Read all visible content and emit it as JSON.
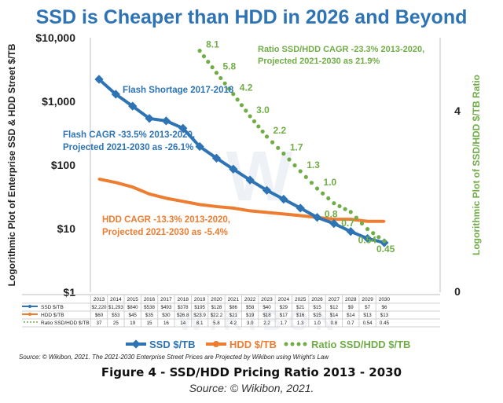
{
  "title": "SSD is Cheaper than HDD in 2026 and Beyond",
  "caption": "Figure 4 - SSD/HDD Pricing Ratio 2013 - 2030",
  "source_line": "Source: © Wikibon, 2021.",
  "source_note": "Source: © Wikibon, 2021. The 2021-2030 Enterprise Street Prices are Projected by Wikibon using Wright's Law",
  "watermark": "WIKIBON",
  "colors": {
    "ssd": "#2e74b5",
    "hdd": "#ed7d31",
    "ratio": "#70ad47",
    "title": "#2e74b5"
  },
  "chart_data": {
    "type": "line",
    "title": "SSD is Cheaper than HDD in 2026 and Beyond",
    "ylabel": "Logorithmic Plot of Enterprise SSD & HDD Street $/TB",
    "y2label": "Logorithmic Plot of SSD/HDD $/TB Ratio",
    "yscale": "log",
    "ylim": [
      1,
      10000
    ],
    "y_ticks": [
      "$1",
      "$10",
      "$100",
      "$1,000",
      "$10,000"
    ],
    "y2_ticks": [
      "0",
      "4"
    ],
    "categories": [
      "2013",
      "2014",
      "2015",
      "2016",
      "2017",
      "2018",
      "2019",
      "2020",
      "2021",
      "2022",
      "2023",
      "2024",
      "2025",
      "2026",
      "2027",
      "2028",
      "2029",
      "2030"
    ],
    "series": [
      {
        "name": "SSD $/TB",
        "values": [
          2220,
          1293,
          840,
          538,
          493,
          378,
          195,
          128,
          86,
          58,
          40,
          29,
          21,
          15,
          12,
          9,
          7,
          6
        ],
        "labels": [
          "$2,220",
          "$1,293",
          "$840",
          "$538",
          "$493",
          "$378",
          "$195",
          "$128",
          "$86",
          "$58",
          "$40",
          "$29",
          "$21",
          "$15",
          "$12",
          "$9",
          "$7",
          "$6"
        ]
      },
      {
        "name": "HDD $/TB",
        "values": [
          60,
          53,
          45,
          35,
          30,
          26.8,
          23.9,
          22.2,
          21,
          19,
          18,
          17,
          16,
          15,
          14,
          14,
          13,
          13
        ],
        "labels": [
          "$60",
          "$53",
          "$45",
          "$35",
          "$30",
          "$26.8",
          "$23.9",
          "$22.2",
          "$21",
          "$19",
          "$18",
          "$17",
          "$16",
          "$15",
          "$14",
          "$14",
          "$13",
          "$13"
        ]
      },
      {
        "name": "Ratio SSD/HDD $/TB",
        "values": [
          37,
          25,
          19,
          15,
          16,
          14,
          8.1,
          5.8,
          4.2,
          3.0,
          2.2,
          1.7,
          1.3,
          1.0,
          0.8,
          0.7,
          0.54,
          0.45
        ],
        "labels": [
          "37",
          "25",
          "19",
          "15",
          "16",
          "14",
          "8.1",
          "5.8",
          "4.2",
          "3.0",
          "2.2",
          "1.7",
          "1.3",
          "1.0",
          "0.8",
          "0.7",
          "0.54",
          "0.45"
        ]
      }
    ],
    "table_headers": [
      "SSD $/TB",
      "HDD $/TB",
      "Ratio SSD/HDD $/TB"
    ],
    "ratio_point_labels": [
      {
        "year": "2019",
        "text": "8.1"
      },
      {
        "year": "2020",
        "text": "5.8"
      },
      {
        "year": "2021",
        "text": "4.2"
      },
      {
        "year": "2022",
        "text": "3.0"
      },
      {
        "year": "2023",
        "text": "2.2"
      },
      {
        "year": "2024",
        "text": "1.7"
      },
      {
        "year": "2025",
        "text": "1.3"
      },
      {
        "year": "2026",
        "text": "1.0"
      },
      {
        "year": "2027",
        "text": "0.8"
      },
      {
        "year": "2028",
        "text": "0.7"
      },
      {
        "year": "2029",
        "text": "0.54"
      },
      {
        "year": "2030",
        "text": "0.45"
      }
    ],
    "annotations": {
      "flash_shortage": "Flash Shortage 2017-2018",
      "flash_cagr_1": "Flash CAGR -33.5% 2013-2020,",
      "flash_cagr_2": "Projected 2021-2030 as -26.1%",
      "hdd_cagr_1": "HDD CAGR -13.3% 2013-2020,",
      "hdd_cagr_2": "Projected 2021-2030 as -5.4%",
      "ratio_cagr_1": "Ratio SSD/HDD CAGR -23.3% 2013-2020,",
      "ratio_cagr_2": "Projected 2021-2030 as 21.9%"
    },
    "legend": [
      "SSD $/TB",
      "HDD $/TB",
      "Ratio SSD/HDD $/TB"
    ],
    "legend_position": "bottom",
    "grid": false
  }
}
